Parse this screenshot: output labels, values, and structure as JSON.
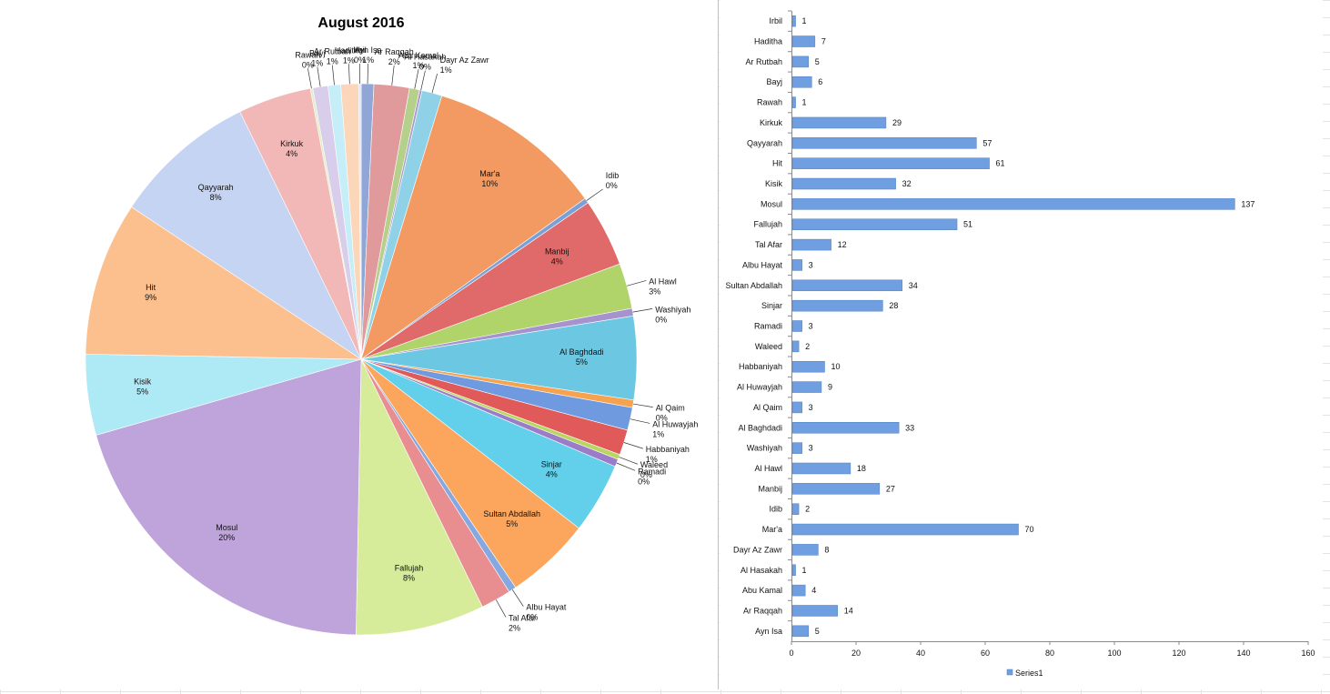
{
  "chart_data": [
    {
      "type": "pie",
      "title": "August 2016",
      "slices": [
        {
          "label": "Ayn Isa",
          "value": 5,
          "percent": "1%",
          "color": "#8fa6d6"
        },
        {
          "label": "Ar Raqqah",
          "value": 14,
          "percent": "2%",
          "color": "#e09a9c"
        },
        {
          "label": "Abu Kamal",
          "value": 4,
          "percent": "1%",
          "color": "#b5d08a"
        },
        {
          "label": "Al Hasakah",
          "value": 1,
          "percent": "0%",
          "color": "#a99ad0"
        },
        {
          "label": "Dayr Az Zawr",
          "value": 8,
          "percent": "1%",
          "color": "#8fd2e8"
        },
        {
          "label": "Mar'a",
          "value": 70,
          "percent": "10%",
          "color": "#f29a62"
        },
        {
          "label": "Idib",
          "value": 2,
          "percent": "0%",
          "color": "#7aa0d8"
        },
        {
          "label": "Manbij",
          "value": 27,
          "percent": "4%",
          "color": "#e06a6a"
        },
        {
          "label": "Al Hawl",
          "value": 18,
          "percent": "3%",
          "color": "#b0d46a"
        },
        {
          "label": "Washiyah",
          "value": 3,
          "percent": "0%",
          "color": "#a592cf"
        },
        {
          "label": "Al Baghdadi",
          "value": 33,
          "percent": "5%",
          "color": "#6cc7e2"
        },
        {
          "label": "Al Qaim",
          "value": 3,
          "percent": "0%",
          "color": "#f6a24e"
        },
        {
          "label": "Al Huwayjah",
          "value": 9,
          "percent": "1%",
          "color": "#6f9ae0"
        },
        {
          "label": "Habbaniyah",
          "value": 10,
          "percent": "1%",
          "color": "#e05a5a"
        },
        {
          "label": "Waleed",
          "value": 2,
          "percent": "0%",
          "color": "#b8d660"
        },
        {
          "label": "Ramadi",
          "value": 3,
          "percent": "0%",
          "color": "#9a7cc8"
        },
        {
          "label": "Sinjar",
          "value": 28,
          "percent": "4%",
          "color": "#62d0ea"
        },
        {
          "label": "Sultan Abdallah",
          "value": 34,
          "percent": "5%",
          "color": "#fba65c"
        },
        {
          "label": "Albu Hayat",
          "value": 3,
          "percent": "0%",
          "color": "#86a8e0"
        },
        {
          "label": "Tal Afar",
          "value": 12,
          "percent": "2%",
          "color": "#e88e90"
        },
        {
          "label": "Fallujah",
          "value": 51,
          "percent": "8%",
          "color": "#d6ec9a"
        },
        {
          "label": "Mosul",
          "value": 137,
          "percent": "20%",
          "color": "#bea4da"
        },
        {
          "label": "Kisik",
          "value": 32,
          "percent": "5%",
          "color": "#aeeaf6"
        },
        {
          "label": "Hit",
          "value": 61,
          "percent": "9%",
          "color": "#fcc08e"
        },
        {
          "label": "Qayyarah",
          "value": 57,
          "percent": "8%",
          "color": "#c4d4f2"
        },
        {
          "label": "Kirkuk",
          "value": 29,
          "percent": "4%",
          "color": "#f2b8b8"
        },
        {
          "label": "Rawah",
          "value": 1,
          "percent": "0%",
          "color": "#e2eec8"
        },
        {
          "label": "Bayj",
          "value": 6,
          "percent": "1%",
          "color": "#d8cdea"
        },
        {
          "label": "Ar Rutbah",
          "value": 5,
          "percent": "1%",
          "color": "#c6eef8"
        },
        {
          "label": "Haditha",
          "value": 7,
          "percent": "1%",
          "color": "#fcd6b8"
        },
        {
          "label": "Irbil",
          "value": 1,
          "percent": "0%",
          "color": "#dfe6f6"
        }
      ]
    },
    {
      "type": "bar",
      "orientation": "horizontal",
      "categories": [
        "Irbil",
        "Haditha",
        "Ar Rutbah",
        "Bayj",
        "Rawah",
        "Kirkuk",
        "Qayyarah",
        "Hit",
        "Kisik",
        "Mosul",
        "Fallujah",
        "Tal Afar",
        "Albu Hayat",
        "Sultan Abdallah",
        "Sinjar",
        "Ramadi",
        "Waleed",
        "Habbaniyah",
        "Al Huwayjah",
        "Al Qaim",
        "Al Baghdadi",
        "Washiyah",
        "Al Hawl",
        "Manbij",
        "Idib",
        "Mar'a",
        "Dayr Az Zawr",
        "Al Hasakah",
        "Abu Kamal",
        "Ar Raqqah",
        "Ayn Isa"
      ],
      "series": [
        {
          "name": "Series1",
          "color": "#6f9fe0",
          "values": [
            1,
            7,
            5,
            6,
            1,
            29,
            57,
            61,
            32,
            137,
            51,
            12,
            3,
            34,
            28,
            3,
            2,
            10,
            9,
            3,
            33,
            3,
            18,
            27,
            2,
            70,
            8,
            1,
            4,
            14,
            5
          ]
        }
      ],
      "xlim": [
        0,
        160
      ],
      "xticks": [
        0,
        20,
        40,
        60,
        80,
        100,
        120,
        140,
        160
      ],
      "legend": "bottom",
      "data_labels": true
    }
  ]
}
